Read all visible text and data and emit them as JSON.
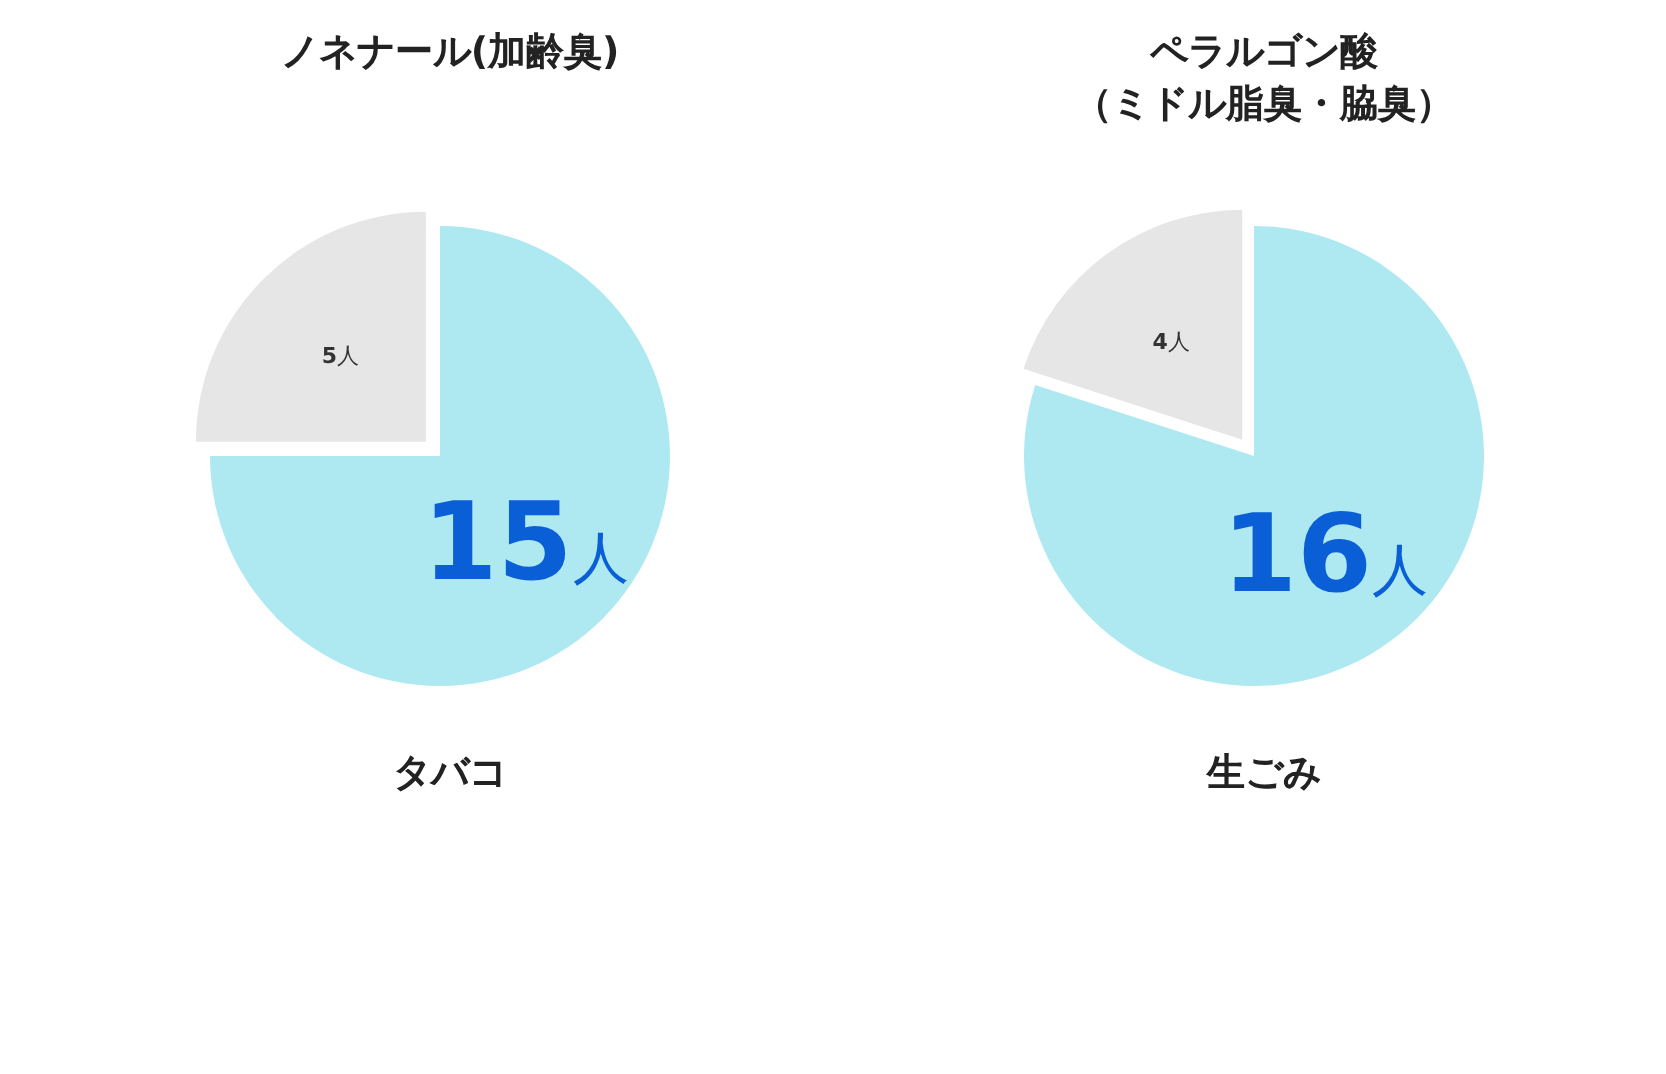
{
  "chart_data": [
    {
      "type": "pie",
      "title": "ノネナール(加齢臭)",
      "categories": [
        "タバコ",
        null
      ],
      "values": [
        15,
        5
      ],
      "colors": [
        "#aee9f2",
        "#e6e6e6"
      ],
      "value_labels": [
        "15人",
        "5人"
      ]
    },
    {
      "type": "pie",
      "title": "ペラルゴン酸（ミドル脂臭・脇臭）",
      "categories": [
        "生ごみ",
        null
      ],
      "values": [
        16,
        4
      ],
      "colors": [
        "#aee9f2",
        "#e6e6e6"
      ],
      "value_labels": [
        "16人",
        "4人"
      ]
    }
  ]
}
